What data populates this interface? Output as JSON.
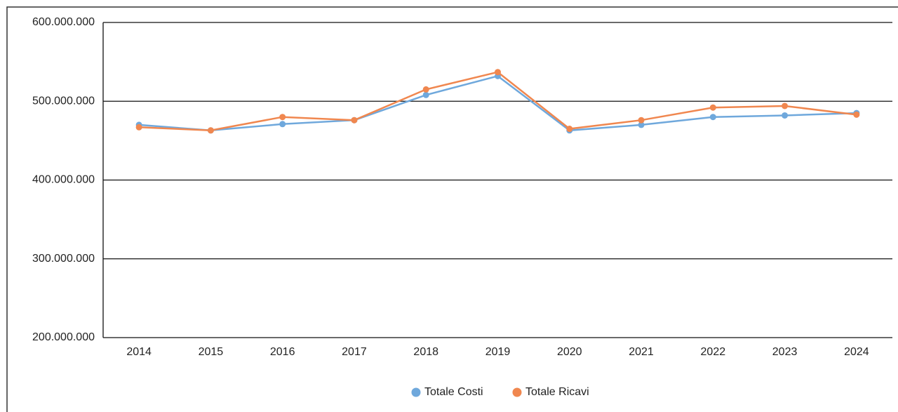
{
  "chart_data": {
    "type": "line",
    "categories": [
      "2014",
      "2015",
      "2016",
      "2017",
      "2018",
      "2019",
      "2020",
      "2021",
      "2022",
      "2023",
      "2024"
    ],
    "series": [
      {
        "name": "Totale Costi",
        "color": "#6fa8dc",
        "values": [
          470000000,
          463000000,
          471000000,
          476000000,
          508000000,
          532000000,
          463000000,
          470000000,
          480000000,
          482000000,
          485000000
        ]
      },
      {
        "name": "Totale Ricavi",
        "color": "#f0874f",
        "values": [
          467000000,
          463000000,
          480000000,
          476000000,
          515000000,
          537000000,
          465000000,
          476000000,
          492000000,
          494000000,
          483000000
        ]
      }
    ],
    "ylim": [
      200000000,
      600000000
    ],
    "yticks": [
      {
        "value": 200000000,
        "label": "200.000.000"
      },
      {
        "value": 300000000,
        "label": "300.000.000"
      },
      {
        "value": 400000000,
        "label": "400.000.000"
      },
      {
        "value": 500000000,
        "label": "500.000.000"
      },
      {
        "value": 600000000,
        "label": "600.000.000"
      }
    ],
    "grid": true,
    "legend": "bottom"
  }
}
